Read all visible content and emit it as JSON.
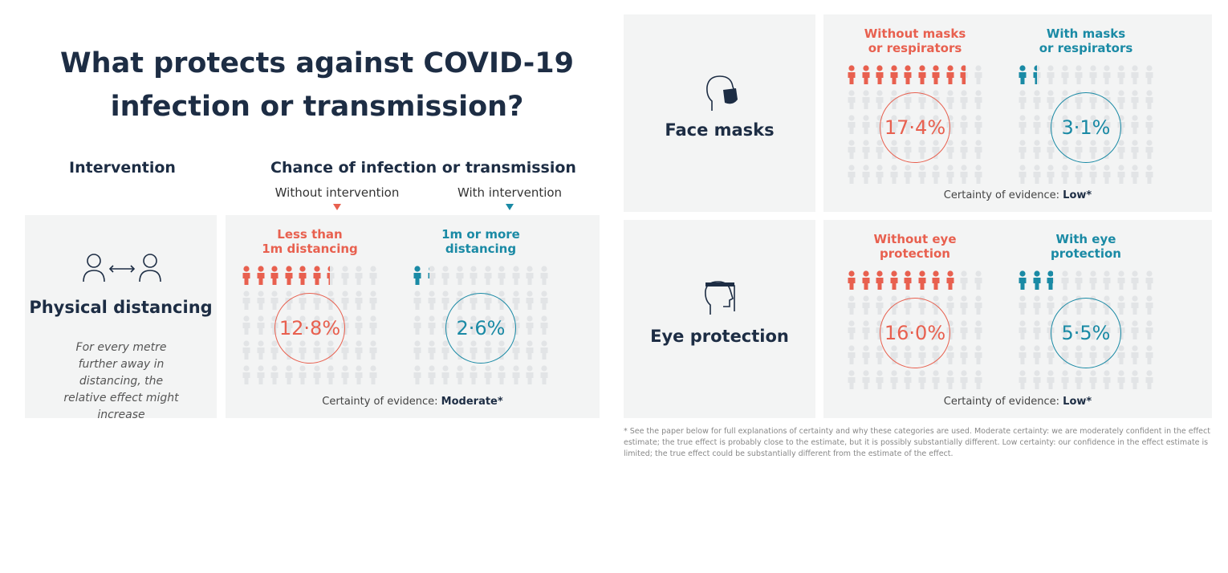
{
  "title": "What protects against COVID-19 infection or transmission?",
  "headers": {
    "intervention": "Intervention",
    "chance": "Chance of infection or transmission",
    "without": "Without intervention",
    "with": "With intervention"
  },
  "colors": {
    "without": "#e8604f",
    "with": "#1a8aa5",
    "text": "#1d2d44",
    "panel": "#f3f4f4",
    "person_empty": "#e2e4e6"
  },
  "grid": {
    "columns": 10,
    "rows": 5,
    "people_total": 50
  },
  "panels": [
    {
      "id": "distancing",
      "icon": "two-people-distance-icon",
      "label": "Physical distancing",
      "note": "For every metre further away in distancing, the relative effect might increase",
      "without": {
        "label_line1": "Less than",
        "label_line2": "1m distancing",
        "percent": 12.8,
        "percent_text": "12·8%"
      },
      "with": {
        "label_line1": "1m or more",
        "label_line2": "distancing",
        "percent": 2.6,
        "percent_text": "2·6%"
      },
      "certainty_prefix": "Certainty of evidence: ",
      "certainty": "Moderate*"
    },
    {
      "id": "masks",
      "icon": "face-mask-icon",
      "label": "Face masks",
      "without": {
        "label_line1": "Without masks",
        "label_line2": "or respirators",
        "percent": 17.4,
        "percent_text": "17·4%"
      },
      "with": {
        "label_line1": "With masks",
        "label_line2": "or respirators",
        "percent": 3.1,
        "percent_text": "3·1%"
      },
      "certainty_prefix": "Certainty of evidence: ",
      "certainty": "Low*"
    },
    {
      "id": "eye",
      "icon": "face-shield-icon",
      "label": "Eye protection",
      "without": {
        "label_line1": "Without eye",
        "label_line2": "protection",
        "percent": 16.0,
        "percent_text": "16·0%"
      },
      "with": {
        "label_line1": "With eye",
        "label_line2": "protection",
        "percent": 5.5,
        "percent_text": "5·5%"
      },
      "certainty_prefix": "Certainty of evidence: ",
      "certainty": "Low*"
    }
  ],
  "footnote": "* See the paper below for full explanations of certainty and why these categories are used. Moderate certainty: we are moderately confident in the effect estimate; the true effect is probably close to the estimate, but it is possibly substantially different. Low certainty: our confidence in the effect estimate is limited; the true effect could be substantially different from the estimate of the effect."
}
